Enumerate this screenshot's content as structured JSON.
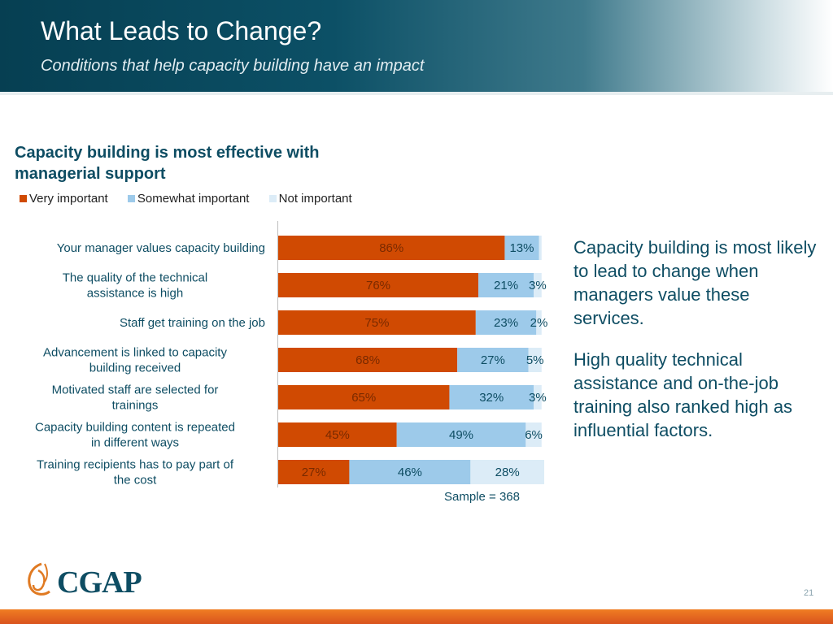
{
  "header": {
    "title": "What Leads to Change?",
    "subtitle": "Conditions that help capacity building have an impact"
  },
  "chart_data": {
    "type": "bar",
    "orientation": "horizontal",
    "stacked": true,
    "title": "Capacity building is most effective with managerial support",
    "categories": [
      "Your manager values capacity building",
      "The quality of the technical assistance is high",
      "Staff get training on the job",
      "Advancement is linked to capacity building received",
      "Motivated staff are selected for trainings",
      "Capacity building content is repeated in different ways",
      "Training recipients has to pay part of the cost"
    ],
    "series": [
      {
        "name": "Very important",
        "color": "#d04a02",
        "values": [
          86,
          76,
          75,
          68,
          65,
          45,
          27
        ],
        "labels": [
          "86%",
          "76%",
          "75%",
          "68%",
          "65%",
          "45%",
          "27%"
        ]
      },
      {
        "name": "Somewhat important",
        "color": "#9dcaea",
        "values": [
          13,
          21,
          23,
          27,
          32,
          49,
          46
        ],
        "labels": [
          "13%",
          "21%",
          "23%",
          "27%",
          "32%",
          "49%",
          "46%"
        ]
      },
      {
        "name": "Not important",
        "color": "#dcecf7",
        "values": [
          1,
          3,
          2,
          5,
          3,
          6,
          28
        ],
        "labels": [
          "",
          "3%",
          "2%",
          "5%",
          "3%",
          "6%",
          "28%"
        ]
      }
    ],
    "xlim": [
      0,
      101
    ],
    "grid": false,
    "legend_position": "top-left",
    "note": "Sample = 368"
  },
  "side_text": [
    "Capacity building is most likely to lead to change when managers value these services.",
    "High quality technical assistance and on-the-job training also ranked high as influential factors."
  ],
  "logo": {
    "text": "CGAP"
  },
  "page_number": "21"
}
